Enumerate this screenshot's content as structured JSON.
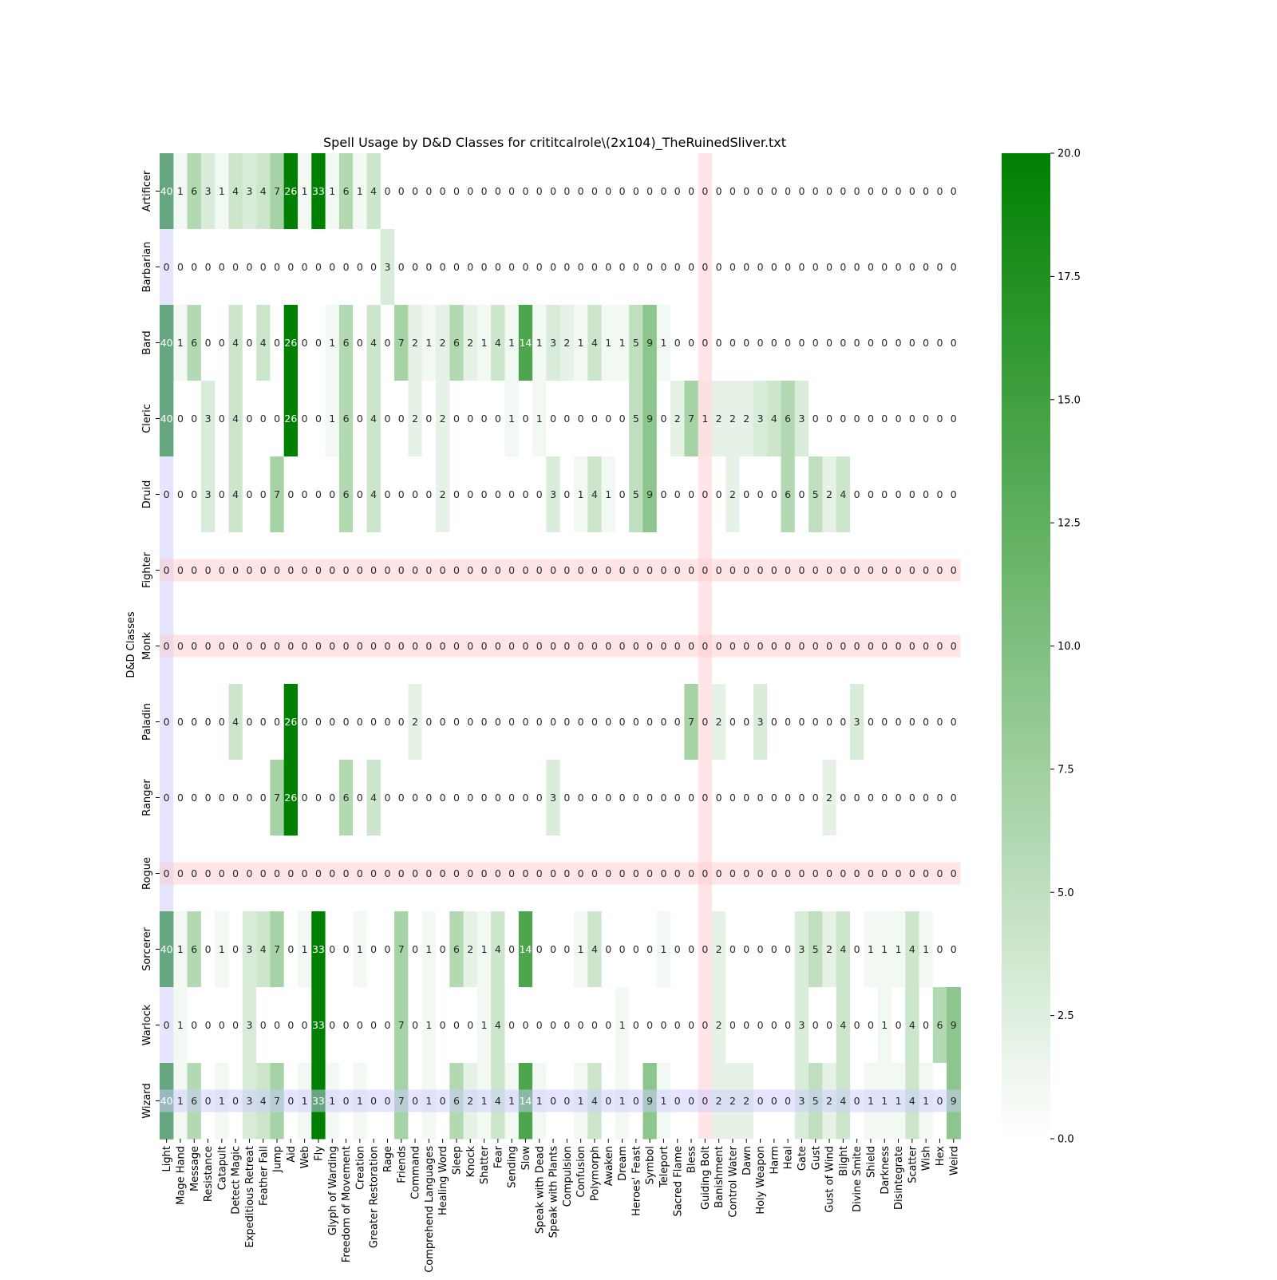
{
  "chart_data": {
    "type": "heatmap",
    "title": "Spell Usage by D&D Classes for crititcalrole\\(2x104)_TheRuinedSliver.txt",
    "ylabel": "D&D Classes",
    "xlabel": "",
    "rows": [
      "Artificer",
      "Barbarian",
      "Bard",
      "Cleric",
      "Druid",
      "Fighter",
      "Monk",
      "Paladin",
      "Ranger",
      "Rogue",
      "Sorcerer",
      "Warlock",
      "Wizard"
    ],
    "columns": [
      "Light",
      "Mage Hand",
      "Message",
      "Resistance",
      "Catapult",
      "Detect Magic",
      "Expeditious Retreat",
      "Feather Fall",
      "Jump",
      "Aid",
      "Web",
      "Fly",
      "Glyph of Warding",
      "Freedom of Movement",
      "Creation",
      "Greater Restoration",
      "Rage",
      "Friends",
      "Command",
      "Comprehend Languages",
      "Healing Word",
      "Sleep",
      "Knock",
      "Shatter",
      "Fear",
      "Sending",
      "Slow",
      "Speak with Dead",
      "Speak with Plants",
      "Compulsion",
      "Confusion",
      "Polymorph",
      "Awaken",
      "Dream",
      "Heroes' Feast",
      "Symbol",
      "Teleport",
      "Sacred Flame",
      "Bless",
      "Guiding Bolt",
      "Banishment",
      "Control Water",
      "Dawn",
      "Holy Weapon",
      "Harm",
      "Heal",
      "Gate",
      "Gust",
      "Gust of Wind",
      "Blight",
      "Divine Smite",
      "Shield",
      "Darkness",
      "Disintegrate",
      "Scatter",
      "Wish",
      "Hex",
      "Weird"
    ],
    "values": [
      [
        40,
        1,
        6,
        3,
        1,
        4,
        3,
        4,
        7,
        26,
        1,
        33,
        1,
        6,
        1,
        4,
        0,
        0,
        0,
        0,
        0,
        0,
        0,
        0,
        0,
        0,
        0,
        0,
        0,
        0,
        0,
        0,
        0,
        0,
        0,
        0,
        0,
        0,
        0,
        0,
        0,
        0,
        0,
        0,
        0,
        0,
        0,
        0,
        0,
        0,
        0,
        0,
        0,
        0,
        0,
        0,
        0,
        0
      ],
      [
        0,
        0,
        0,
        0,
        0,
        0,
        0,
        0,
        0,
        0,
        0,
        0,
        0,
        0,
        0,
        0,
        3,
        0,
        0,
        0,
        0,
        0,
        0,
        0,
        0,
        0,
        0,
        0,
        0,
        0,
        0,
        0,
        0,
        0,
        0,
        0,
        0,
        0,
        0,
        0,
        0,
        0,
        0,
        0,
        0,
        0,
        0,
        0,
        0,
        0,
        0,
        0,
        0,
        0,
        0,
        0,
        0,
        0
      ],
      [
        40,
        1,
        6,
        0,
        0,
        4,
        0,
        4,
        0,
        26,
        0,
        0,
        1,
        6,
        0,
        4,
        0,
        7,
        2,
        1,
        2,
        6,
        2,
        1,
        4,
        1,
        14,
        1,
        3,
        2,
        1,
        4,
        1,
        1,
        5,
        9,
        1,
        0,
        0,
        0,
        0,
        0,
        0,
        0,
        0,
        0,
        0,
        0,
        0,
        0,
        0,
        0,
        0,
        0,
        0,
        0,
        0,
        0
      ],
      [
        40,
        0,
        0,
        3,
        0,
        4,
        0,
        0,
        0,
        26,
        0,
        0,
        1,
        6,
        0,
        4,
        0,
        0,
        2,
        0,
        2,
        0,
        0,
        0,
        0,
        1,
        0,
        1,
        0,
        0,
        0,
        0,
        0,
        0,
        5,
        9,
        0,
        2,
        7,
        1,
        2,
        2,
        2,
        3,
        4,
        6,
        3,
        0,
        0,
        0,
        0,
        0,
        0,
        0,
        0,
        0,
        0,
        0
      ],
      [
        0,
        0,
        0,
        3,
        0,
        4,
        0,
        0,
        7,
        0,
        0,
        0,
        0,
        6,
        0,
        4,
        0,
        0,
        0,
        0,
        2,
        0,
        0,
        0,
        0,
        0,
        0,
        0,
        3,
        0,
        1,
        4,
        1,
        0,
        5,
        9,
        0,
        0,
        0,
        0,
        0,
        2,
        0,
        0,
        0,
        6,
        0,
        5,
        2,
        4,
        0,
        0,
        0,
        0,
        0,
        0,
        0,
        0
      ],
      [
        0,
        0,
        0,
        0,
        0,
        0,
        0,
        0,
        0,
        0,
        0,
        0,
        0,
        0,
        0,
        0,
        0,
        0,
        0,
        0,
        0,
        0,
        0,
        0,
        0,
        0,
        0,
        0,
        0,
        0,
        0,
        0,
        0,
        0,
        0,
        0,
        0,
        0,
        0,
        0,
        0,
        0,
        0,
        0,
        0,
        0,
        0,
        0,
        0,
        0,
        0,
        0,
        0,
        0,
        0,
        0,
        0,
        0
      ],
      [
        0,
        0,
        0,
        0,
        0,
        0,
        0,
        0,
        0,
        0,
        0,
        0,
        0,
        0,
        0,
        0,
        0,
        0,
        0,
        0,
        0,
        0,
        0,
        0,
        0,
        0,
        0,
        0,
        0,
        0,
        0,
        0,
        0,
        0,
        0,
        0,
        0,
        0,
        0,
        0,
        0,
        0,
        0,
        0,
        0,
        0,
        0,
        0,
        0,
        0,
        0,
        0,
        0,
        0,
        0,
        0,
        0,
        0
      ],
      [
        0,
        0,
        0,
        0,
        0,
        4,
        0,
        0,
        0,
        26,
        0,
        0,
        0,
        0,
        0,
        0,
        0,
        0,
        2,
        0,
        0,
        0,
        0,
        0,
        0,
        0,
        0,
        0,
        0,
        0,
        0,
        0,
        0,
        0,
        0,
        0,
        0,
        0,
        7,
        0,
        2,
        0,
        0,
        3,
        0,
        0,
        0,
        0,
        0,
        0,
        3,
        0,
        0,
        0,
        0,
        0,
        0,
        0
      ],
      [
        0,
        0,
        0,
        0,
        0,
        0,
        0,
        0,
        7,
        26,
        0,
        0,
        0,
        6,
        0,
        4,
        0,
        0,
        0,
        0,
        0,
        0,
        0,
        0,
        0,
        0,
        0,
        0,
        3,
        0,
        0,
        0,
        0,
        0,
        0,
        0,
        0,
        0,
        0,
        0,
        0,
        0,
        0,
        0,
        0,
        0,
        0,
        0,
        2,
        0,
        0,
        0,
        0,
        0,
        0,
        0,
        0,
        0
      ],
      [
        0,
        0,
        0,
        0,
        0,
        0,
        0,
        0,
        0,
        0,
        0,
        0,
        0,
        0,
        0,
        0,
        0,
        0,
        0,
        0,
        0,
        0,
        0,
        0,
        0,
        0,
        0,
        0,
        0,
        0,
        0,
        0,
        0,
        0,
        0,
        0,
        0,
        0,
        0,
        0,
        0,
        0,
        0,
        0,
        0,
        0,
        0,
        0,
        0,
        0,
        0,
        0,
        0,
        0,
        0,
        0,
        0,
        0
      ],
      [
        40,
        1,
        6,
        0,
        1,
        0,
        3,
        4,
        7,
        0,
        1,
        33,
        0,
        0,
        1,
        0,
        0,
        7,
        0,
        1,
        0,
        6,
        2,
        1,
        4,
        0,
        14,
        0,
        0,
        0,
        1,
        4,
        0,
        0,
        0,
        0,
        1,
        0,
        0,
        0,
        2,
        0,
        0,
        0,
        0,
        0,
        3,
        5,
        2,
        4,
        0,
        1,
        1,
        1,
        4,
        1,
        0,
        0
      ],
      [
        0,
        1,
        0,
        0,
        0,
        0,
        3,
        0,
        0,
        0,
        0,
        33,
        0,
        0,
        0,
        0,
        0,
        7,
        0,
        1,
        0,
        0,
        0,
        1,
        4,
        0,
        0,
        0,
        0,
        0,
        0,
        0,
        0,
        1,
        0,
        0,
        0,
        0,
        0,
        0,
        2,
        0,
        0,
        0,
        0,
        0,
        3,
        0,
        0,
        4,
        0,
        0,
        1,
        0,
        4,
        0,
        6,
        9
      ],
      [
        40,
        1,
        6,
        0,
        1,
        0,
        3,
        4,
        7,
        0,
        1,
        33,
        1,
        0,
        1,
        0,
        0,
        7,
        0,
        1,
        0,
        6,
        2,
        1,
        4,
        1,
        14,
        1,
        0,
        0,
        1,
        4,
        0,
        1,
        0,
        9,
        1,
        0,
        0,
        0,
        2,
        2,
        2,
        0,
        0,
        0,
        3,
        5,
        2,
        4,
        0,
        1,
        1,
        1,
        4,
        1,
        0,
        9
      ]
    ],
    "colorbar": {
      "min": 0,
      "max": 20,
      "ticks": [
        "0.0",
        "2.5",
        "5.0",
        "7.5",
        "10.0",
        "12.5",
        "15.0",
        "17.5",
        "20.0"
      ]
    },
    "colors": {
      "low": "#ffffff",
      "high": "#008000",
      "label_dark": "#262626",
      "label_light": "#ffffff"
    },
    "highlights": {
      "rows": [
        {
          "row": "Fighter",
          "color": "#ffcccc"
        },
        {
          "row": "Monk",
          "color": "#ffcccc"
        },
        {
          "row": "Rogue",
          "color": "#ffcccc"
        },
        {
          "row": "Wizard",
          "color": "#ccccff"
        }
      ],
      "columns": [
        {
          "column": "Light",
          "color": "#ccccff"
        },
        {
          "column": "Guiding Bolt",
          "color": "#ffcccc"
        }
      ]
    }
  }
}
